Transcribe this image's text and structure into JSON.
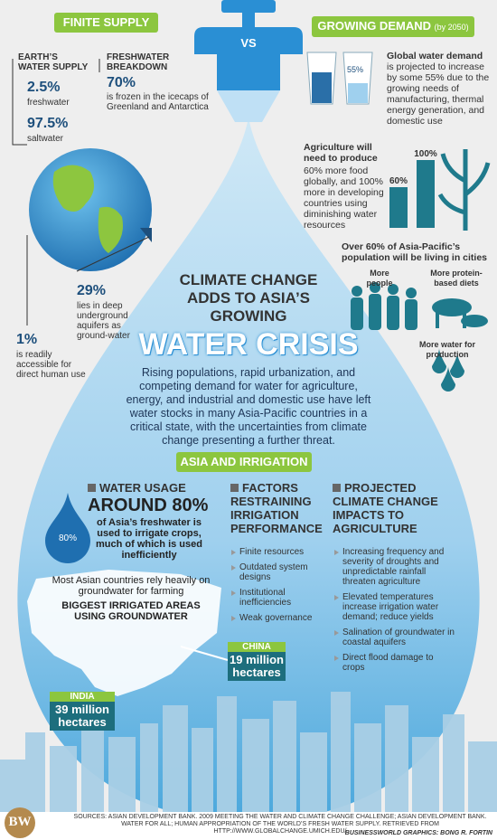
{
  "header": {
    "left": "FINITE SUPPLY",
    "center": "VS",
    "right": "GROWING DEMAND",
    "right_note": "(by 2050)"
  },
  "finite_supply": {
    "earth_heading": "EARTH’S WATER SUPPLY",
    "fresh_value": "2.5%",
    "fresh_label": "freshwater",
    "salt_value": "97.5%",
    "salt_label": "saltwater",
    "breakdown_heading": "FRESHWATER BREAKDOWN",
    "frozen_value": "70%",
    "frozen_text": "is frozen in the icecaps of Greenland and Antarctica",
    "ground_value": "29%",
    "ground_text": "lies in deep underground aquifers as ground-water",
    "access_value": "1%",
    "access_text": "is readily accessible for direct human use"
  },
  "growing_demand": {
    "glass_label": "55%",
    "global_heading": "Global water demand",
    "global_text": "is projected to increase by some 55% due to the growing needs of manufacturing, thermal energy generation, and domestic use",
    "agri_heading": "Agriculture will need to produce",
    "agri_text": "60% more food globally, and 100% more in developing countries using diminishing water resources",
    "agri_bars": {
      "values": [
        60,
        100
      ],
      "value_labels": [
        "60%",
        "100%"
      ]
    },
    "cities_text": "Over 60% of Asia-Pacific’s population will be living in cities",
    "people_label": "More people",
    "diet_label": "More protein-based diets",
    "production_label": "More water for production"
  },
  "title": {
    "lead": "CLIMATE CHANGE ADDS TO ASIA’S GROWING",
    "main": "WATER CRISIS"
  },
  "intro": "Rising populations, rapid urbanization, and competing demand for water for agriculture, energy, and industrial and domestic use have left water stocks in many Asia-Pacific countries in a critical state, with the uncertainties from climate change presenting a further threat.",
  "irrigation": {
    "heading": "ASIA AND IRRIGATION",
    "usage": {
      "heading": "WATER USAGE",
      "value": "AROUND 80%",
      "drop_label": "80%",
      "text": "of Asia’s freshwater is used to irrigate crops, much of which is used inefficiently"
    },
    "map": {
      "note": "Most Asian countries rely heavily on groundwater for farming",
      "heading": "BIGGEST IRRIGATED AREAS USING GROUNDWATER",
      "china": {
        "name": "CHINA",
        "value": "19 million hectares"
      },
      "india": {
        "name": "INDIA",
        "value": "39 million hectares"
      }
    },
    "factors": {
      "heading": "FACTORS RESTRAINING IRRIGATION PERFORMANCE",
      "items": [
        "Finite resources",
        "Outdated system designs",
        "Institutional inefficiencies",
        "Weak governance"
      ]
    },
    "impacts": {
      "heading": "PROJECTED CLIMATE CHANGE IMPACTS TO AGRICULTURE",
      "items": [
        "Increasing frequency and severity of droughts and unpredictable rainfall threaten agriculture",
        "Elevated temperatures increase irrigation water demand; reduce yields",
        "Salination of groundwater in coastal aquifers",
        "Direct flood damage to crops"
      ]
    }
  },
  "footer": {
    "logo": "BW",
    "sources": "SOURCES: ASIAN DEVELOPMENT BANK. 2009 MEETING THE WATER AND CLIMATE CHANGE CHALLENGE; ASIAN DEVELOPMENT BANK. WATER FOR ALL; HUMAN APPROPRIATION OF THE WORLD’S FRESH WATER SUPPLY. RETRIEVED FROM HTTP://WWW.GLOBALCHANGE.UMICH.EDU/",
    "credit": "BUSINESSWORLD GRAPHICS: BONG R. FORTIN"
  }
}
